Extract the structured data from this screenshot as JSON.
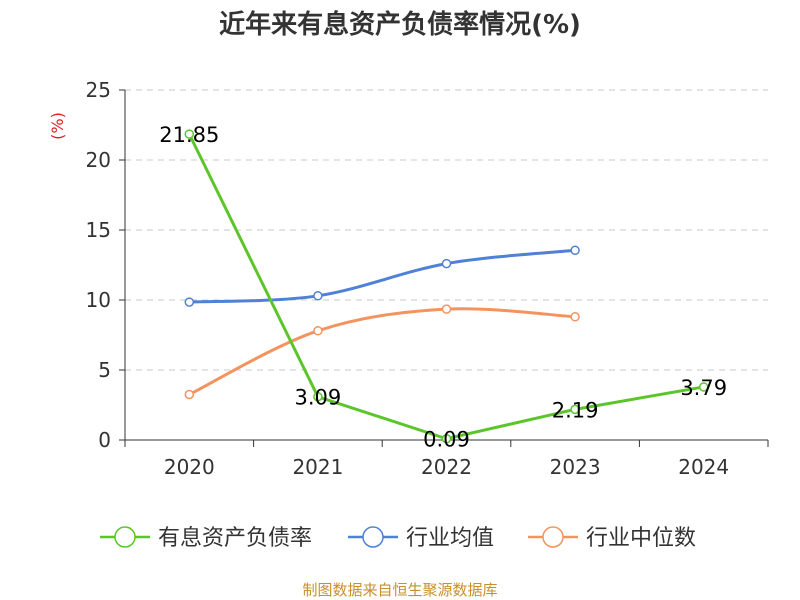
{
  "chart_data": {
    "type": "line",
    "title": "近年来有息资产负债率情况(%)",
    "ylabel": "(%)",
    "xlabel": "",
    "categories": [
      "2020",
      "2021",
      "2022",
      "2023",
      "2024"
    ],
    "ylim": [
      0,
      25
    ],
    "yticks": [
      0,
      5,
      10,
      15,
      20,
      25
    ],
    "grid": "horizontal dashed",
    "legend_position": "bottom",
    "series": [
      {
        "name": "有息资产负债率",
        "color": "#5cc52a",
        "values": [
          21.85,
          3.09,
          0.09,
          2.19,
          3.79
        ],
        "labels": [
          "21.85",
          "3.09",
          "0.09",
          "2.19",
          "3.79"
        ]
      },
      {
        "name": "行业均值",
        "color": "#4f81d6",
        "values": [
          9.85,
          10.3,
          12.6,
          13.55,
          null
        ]
      },
      {
        "name": "行业中位数",
        "color": "#f4935e",
        "values": [
          3.25,
          7.8,
          9.35,
          8.8,
          null
        ]
      }
    ]
  },
  "footer": {
    "source": "制图数据来自恒生聚源数据库"
  }
}
